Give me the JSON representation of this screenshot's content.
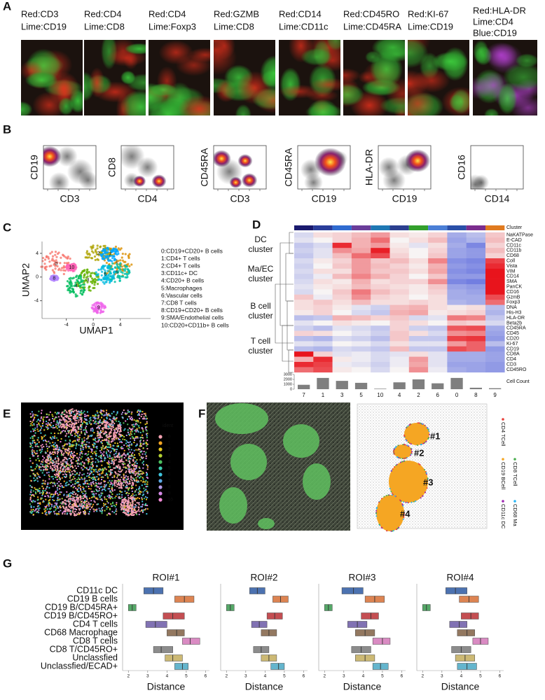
{
  "panels": {
    "A": {
      "label": "A",
      "captions": [
        [
          "Red:CD3",
          "Lime:CD19"
        ],
        [
          "Red:CD4",
          "Lime:CD8"
        ],
        [
          "Red:CD4",
          "Lime:Foxp3"
        ],
        [
          "Red:GZMB",
          "Lime:CD8"
        ],
        [
          "Red:CD14",
          "Lime:CD11c"
        ],
        [
          "Red:CD45RO",
          "Lime:CD45RA"
        ],
        [
          "Red:KI-67",
          "Lime:CD19"
        ],
        [
          "Red:HLA-DR",
          "Lime:CD4",
          "Blue:CD19"
        ]
      ]
    },
    "B": {
      "label": "B",
      "plots": [
        {
          "y": "CD19",
          "x": "CD3"
        },
        {
          "y": "CD8",
          "x": "CD4"
        },
        {
          "y": "CD45RA",
          "x": "CD3"
        },
        {
          "y": "CD45RA",
          "x": "CD19"
        },
        {
          "y": "HLA-DR",
          "x": "CD19"
        },
        {
          "y": "CD16",
          "x": "CD14"
        }
      ]
    },
    "C": {
      "label": "C",
      "x_label": "UMAP1",
      "y_label": "UMAP2",
      "xlim": [
        -7.6,
        8.5
      ],
      "ylim": [
        -7,
        6
      ],
      "xticks": [
        -4,
        0,
        4
      ],
      "yticks": [
        -4,
        0,
        4
      ],
      "plot_labels": [
        0,
        1,
        2,
        3,
        4,
        5,
        6,
        7,
        8,
        9,
        10
      ],
      "colors": [
        "#f8766d",
        "#db8e00",
        "#aea200",
        "#64b200",
        "#00bd5c",
        "#00c1a7",
        "#00bade",
        "#00a6ff",
        "#b385ff",
        "#ef67eb",
        "#ff63b6"
      ],
      "legend": [
        "0:CD19+CD20+ B cells",
        "1:CD4+ T cells",
        "2:CD4+ T cells",
        "3:CD11c+ DC",
        "4:CD20+ B cells",
        "5:Macrophages",
        "6:Vascular cells",
        "7:CD8 T cells",
        "8:CD19+CD20+ B cells",
        "9:SMA/Endothelial cells",
        "10:CD20+CD11b+ B cells"
      ]
    },
    "D": {
      "label": "D",
      "cluster_title": "Cluster",
      "count_title": "Cell Count",
      "clusters": [
        "7",
        "1",
        "3",
        "5",
        "10",
        "4",
        "2",
        "6",
        "0",
        "8",
        "9"
      ],
      "cluster_colors": [
        "#1a1a6e",
        "#2a3d9a",
        "#2f6bd0",
        "#6a3d9a",
        "#1f78b4",
        "#2b3f8f",
        "#33a02c",
        "#4b7fd6",
        "#2a4fa8",
        "#7b2d8e",
        "#e07a1f"
      ],
      "groups": [
        "DC cluster",
        "Ma/EC cluster",
        "B cell cluster",
        "T cell cluster"
      ],
      "markers": [
        "NaKATPase",
        "E-CAD",
        "CD11c",
        "CD11b",
        "CD68",
        "Coll",
        "Vista",
        "VIM",
        "CD14",
        "SMA",
        "PanCK",
        "CD16",
        "GzmB",
        "Foxp3",
        "DNA",
        "His-H3",
        "HLA-DR",
        "Beta2b",
        "CD45RA",
        "CD45",
        "CD20",
        "Ki-67",
        "CD19",
        "CD8A",
        "CD4",
        "CD3",
        "CD45RO"
      ],
      "zlim": [
        -2,
        2
      ],
      "colors": [
        "#2a3fd6",
        "#f7f4f4",
        "#e8141c"
      ],
      "values": [
        [
          -0.3,
          0.2,
          0.3,
          0.5,
          0.8,
          0.2,
          0.1,
          0.3,
          -0.8,
          -0.6,
          0.4
        ],
        [
          -0.2,
          0,
          0.3,
          0.6,
          1.2,
          0,
          0.2,
          0.5,
          -0.9,
          -0.7,
          0.5
        ],
        [
          -0.5,
          -0.3,
          1.8,
          0.6,
          0.8,
          0.1,
          -0.2,
          0.2,
          -0.8,
          -1.2,
          0.3
        ],
        [
          -0.4,
          -0.2,
          0.9,
          0.7,
          1.9,
          0.2,
          0,
          0.3,
          -0.9,
          -1.0,
          0.5
        ],
        [
          -0.5,
          -0.2,
          0.5,
          1.2,
          1.5,
          0.3,
          0,
          0.4,
          -0.9,
          -1.0,
          0.3
        ],
        [
          -0.3,
          0.1,
          0.3,
          0.8,
          0.4,
          0.5,
          0.2,
          1.0,
          -1.1,
          -1.2,
          1.6
        ],
        [
          -0.4,
          0,
          0.4,
          0.8,
          0.5,
          0.3,
          0.1,
          0.6,
          -1,
          -1.1,
          1.8
        ],
        [
          -0.3,
          0.2,
          0.2,
          0.8,
          0.4,
          0.4,
          0.2,
          0.7,
          -1.1,
          -1.2,
          2
        ],
        [
          -0.4,
          -0.1,
          0.5,
          1.0,
          0.6,
          0.3,
          0,
          0.4,
          -1,
          -1,
          2
        ],
        [
          -0.3,
          0.2,
          0.1,
          0.6,
          0.2,
          0.3,
          0.3,
          0.9,
          -1.2,
          -1.3,
          2
        ],
        [
          -0.2,
          0.1,
          0.2,
          0.5,
          0.3,
          0.2,
          0.1,
          0.4,
          -0.9,
          -1,
          2
        ],
        [
          -0.3,
          0,
          0.4,
          1.1,
          0.5,
          0.3,
          0.1,
          0.3,
          -0.8,
          -0.9,
          2
        ],
        [
          0.4,
          -0.1,
          0.3,
          0.9,
          0.3,
          0.2,
          0,
          0.2,
          -0.8,
          -0.8,
          1.5
        ],
        [
          0.2,
          0.4,
          0.2,
          0.5,
          0.2,
          0.2,
          0.3,
          0.2,
          -0.7,
          -0.8,
          1.2
        ],
        [
          0.2,
          0.3,
          0.1,
          -0.2,
          -0.4,
          0.5,
          0.6,
          0.2,
          0.1,
          0.2,
          -0.6
        ],
        [
          0.1,
          0.3,
          0,
          -0.3,
          -0.5,
          0.6,
          0.7,
          0.1,
          0.2,
          0.3,
          -0.7
        ],
        [
          -0.6,
          -0.5,
          0.6,
          0.5,
          0.3,
          0.4,
          -0.3,
          -0.2,
          1.1,
          1.0,
          -0.5
        ],
        [
          -0.2,
          0,
          0.2,
          0.1,
          0,
          0.3,
          0.2,
          0,
          0.4,
          0.3,
          -0.3
        ],
        [
          -0.4,
          -0.6,
          -0.2,
          -0.3,
          -0.5,
          0.3,
          -0.4,
          -0.5,
          1.4,
          1.5,
          -0.8
        ],
        [
          0.3,
          0.2,
          0,
          -0.2,
          -0.4,
          0.4,
          0.2,
          -0.3,
          0.9,
          1.0,
          -0.9
        ],
        [
          -0.6,
          -0.7,
          -0.3,
          -0.4,
          -0.6,
          0.4,
          -0.5,
          -0.5,
          1.6,
          1.7,
          -1
        ],
        [
          -0.2,
          -0.3,
          0,
          -0.1,
          -0.3,
          0.2,
          -0.2,
          -0.2,
          0.8,
          1.3,
          -0.6
        ],
        [
          -0.6,
          -0.7,
          -0.3,
          -0.4,
          -0.5,
          0.5,
          -0.5,
          -0.5,
          1.5,
          1.3,
          -1
        ],
        [
          2,
          0.3,
          -0.2,
          -0.1,
          -0.3,
          -0.2,
          0.2,
          -0.2,
          -0.8,
          -0.8,
          -0.9
        ],
        [
          0.6,
          1.8,
          0.1,
          -0.1,
          -0.3,
          -0.1,
          0.8,
          -0.2,
          -0.8,
          -0.8,
          -0.9
        ],
        [
          1.8,
          1.6,
          -0.1,
          -0.2,
          -0.4,
          -0.1,
          0.7,
          -0.2,
          -0.9,
          -0.9,
          -1
        ],
        [
          1.2,
          1.5,
          0.1,
          0,
          -0.3,
          0,
          0.9,
          -0.1,
          -0.8,
          -0.9,
          -1
        ]
      ],
      "counts": [
        900,
        2300,
        1700,
        1300,
        100,
        1400,
        2000,
        1200,
        2300,
        300,
        200
      ],
      "count_ylim": [
        0,
        3000
      ],
      "count_yticks": [
        0,
        1000,
        2000,
        3000
      ],
      "count_color": "#7f7f7f"
    },
    "E": {
      "label": "E",
      "legend_title": "ident",
      "idents": [
        0,
        1,
        2,
        3,
        4,
        5,
        6,
        7,
        8,
        9,
        10
      ],
      "colors": [
        "#f6a3b3",
        "#f5a623",
        "#e6c820",
        "#b5d334",
        "#4cc25f",
        "#3fcfb0",
        "#3fc7e0",
        "#5aa9e6",
        "#b49be8",
        "#d78ae8",
        "#f28ad8"
      ]
    },
    "F": {
      "label": "F",
      "rois": [
        "#1",
        "#2",
        "#3",
        "#4"
      ],
      "legend": [
        "CD4 TCell",
        "CD19 BCell",
        "CD8 TCell",
        "CD11c DC",
        "CD68 Ma"
      ],
      "colors": [
        "#e8403a",
        "#f5a623",
        "#4caf50",
        "#9c27b0",
        "#29b6f6"
      ]
    },
    "G": {
      "label": "G",
      "x_label": "Distance",
      "xlim": [
        1.7,
        6.2
      ],
      "xticks": [
        2,
        3,
        4,
        5,
        6
      ],
      "categories": [
        "CD11c DC",
        "CD19 B cells",
        "CD19 B/CD45RA+",
        "CD19 B/CD45RO+",
        "CD4 T cells",
        "CD68 Macrophage",
        "CD8 T cells",
        "CD8 T/CD45RO+",
        "Unclassfied",
        "Unclassfied/ECAD+"
      ],
      "colors": [
        "#4c72b0",
        "#dd8452",
        "#55a868",
        "#c44e52",
        "#8172b3",
        "#937860",
        "#da8bc3",
        "#8c8c8c",
        "#ccb974",
        "#64b5cd"
      ],
      "rois": [
        {
          "title": "ROI#1",
          "q1": [
            2.8,
            4.4,
            2.0,
            3.8,
            2.9,
            4.0,
            4.8,
            3.3,
            3.9,
            4.4
          ],
          "median": [
            3.3,
            4.9,
            2.2,
            4.3,
            3.4,
            4.5,
            5.2,
            3.7,
            4.3,
            4.8
          ],
          "q3": [
            3.8,
            5.4,
            2.4,
            4.9,
            4.0,
            4.9,
            5.7,
            4.3,
            4.8,
            5.1
          ]
        },
        {
          "title": "ROI#2",
          "q1": [
            3.2,
            4.4,
            2.0,
            4.1,
            3.3,
            3.8,
            null,
            3.4,
            3.8,
            4.3
          ],
          "median": [
            3.6,
            4.8,
            2.2,
            4.5,
            3.7,
            4.2,
            null,
            3.8,
            4.2,
            4.7
          ],
          "q3": [
            4.0,
            5.2,
            2.4,
            4.9,
            4.1,
            4.6,
            null,
            4.2,
            4.6,
            5.0
          ]
        },
        {
          "title": "ROI#3",
          "q1": [
            2.9,
            4.1,
            2.0,
            3.9,
            3.2,
            3.6,
            4.5,
            3.4,
            3.6,
            4.5
          ],
          "median": [
            3.5,
            4.6,
            2.2,
            4.4,
            3.7,
            4.1,
            5.0,
            3.9,
            4.1,
            4.9
          ],
          "q3": [
            4.0,
            5.1,
            2.4,
            4.8,
            4.2,
            4.6,
            5.4,
            4.4,
            4.6,
            5.3
          ]
        },
        {
          "title": "ROI#4",
          "q1": [
            3.2,
            3.9,
            2.0,
            4.0,
            3.4,
            3.8,
            4.6,
            3.5,
            3.7,
            3.8
          ],
          "median": [
            3.7,
            4.4,
            2.2,
            4.5,
            3.9,
            4.3,
            5.0,
            4.0,
            4.2,
            4.3
          ],
          "q3": [
            4.3,
            4.9,
            2.4,
            4.9,
            4.3,
            4.7,
            5.4,
            4.5,
            4.7,
            4.8
          ]
        }
      ]
    }
  }
}
